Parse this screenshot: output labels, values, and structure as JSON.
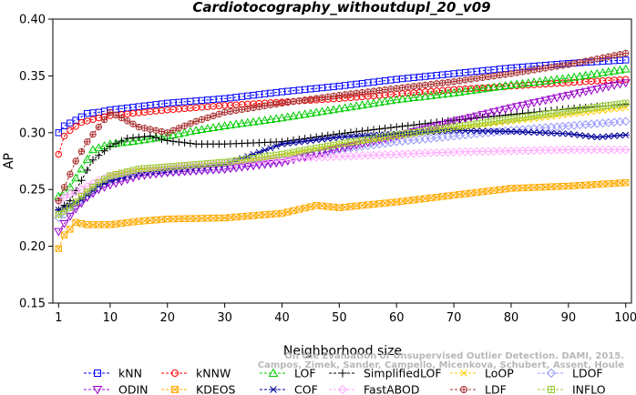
{
  "chart_data": {
    "type": "line",
    "title": "Cardiotocography_withoutdupl_20_v09",
    "xlabel": "Neighborhood size",
    "ylabel": "AP",
    "xlim": [
      0,
      101
    ],
    "ylim": [
      0.15,
      0.4
    ],
    "xticks": [
      1,
      10,
      20,
      30,
      40,
      50,
      60,
      70,
      80,
      90,
      100
    ],
    "yticks": [
      0.15,
      0.2,
      0.25,
      0.3,
      0.35,
      0.4
    ],
    "xtick_labels": [
      "1",
      "10",
      "20",
      "30",
      "40",
      "50",
      "60",
      "70",
      "80",
      "90",
      "100"
    ],
    "ytick_labels": [
      "0.15",
      "0.20",
      "0.25",
      "0.30",
      "0.35",
      "0.40"
    ],
    "grid": false,
    "legend_position": "bottom",
    "watermark": [
      "Campos, Zimek, Sander, Campello, Micenkova, Schubert, Assent, Houle",
      "On the Evaluation of Unsupervised Outlier Detection. DAMI, 2015."
    ],
    "series": [
      {
        "name": "kNN",
        "color": "#0000ff",
        "marker": "square",
        "points": [
          [
            1,
            0.3
          ],
          [
            2,
            0.306
          ],
          [
            4,
            0.311
          ],
          [
            6,
            0.317
          ],
          [
            8,
            0.318
          ],
          [
            10,
            0.32
          ],
          [
            15,
            0.323
          ],
          [
            20,
            0.326
          ],
          [
            30,
            0.33
          ],
          [
            40,
            0.336
          ],
          [
            50,
            0.341
          ],
          [
            60,
            0.347
          ],
          [
            70,
            0.352
          ],
          [
            80,
            0.357
          ],
          [
            90,
            0.361
          ],
          [
            100,
            0.364
          ]
        ]
      },
      {
        "name": "kNNW",
        "color": "#ff0000",
        "marker": "circle",
        "points": [
          [
            1,
            0.281
          ],
          [
            2,
            0.297
          ],
          [
            3,
            0.302
          ],
          [
            5,
            0.309
          ],
          [
            8,
            0.313
          ],
          [
            10,
            0.315
          ],
          [
            20,
            0.32
          ],
          [
            30,
            0.324
          ],
          [
            40,
            0.327
          ],
          [
            50,
            0.33
          ],
          [
            60,
            0.334
          ],
          [
            70,
            0.338
          ],
          [
            80,
            0.341
          ],
          [
            90,
            0.344
          ],
          [
            100,
            0.347
          ]
        ]
      },
      {
        "name": "LOF",
        "color": "#00cc00",
        "marker": "triangle-up",
        "points": [
          [
            1,
            0.244
          ],
          [
            3,
            0.252
          ],
          [
            5,
            0.268
          ],
          [
            7,
            0.285
          ],
          [
            10,
            0.29
          ],
          [
            15,
            0.293
          ],
          [
            20,
            0.297
          ],
          [
            25,
            0.302
          ],
          [
            30,
            0.306
          ],
          [
            40,
            0.313
          ],
          [
            50,
            0.321
          ],
          [
            60,
            0.329
          ],
          [
            70,
            0.335
          ],
          [
            80,
            0.342
          ],
          [
            90,
            0.348
          ],
          [
            100,
            0.356
          ]
        ]
      },
      {
        "name": "SimplifiedLOF",
        "color": "#000000",
        "marker": "plus",
        "points": [
          [
            1,
            0.232
          ],
          [
            3,
            0.24
          ],
          [
            5,
            0.258
          ],
          [
            7,
            0.276
          ],
          [
            10,
            0.288
          ],
          [
            13,
            0.295
          ],
          [
            17,
            0.297
          ],
          [
            20,
            0.293
          ],
          [
            25,
            0.29
          ],
          [
            30,
            0.29
          ],
          [
            40,
            0.292
          ],
          [
            50,
            0.299
          ],
          [
            60,
            0.305
          ],
          [
            70,
            0.311
          ],
          [
            80,
            0.316
          ],
          [
            90,
            0.321
          ],
          [
            100,
            0.325
          ]
        ]
      },
      {
        "name": "LoOP",
        "color": "#ffcc00",
        "marker": "x",
        "points": [
          [
            1,
            0.232
          ],
          [
            3,
            0.235
          ],
          [
            5,
            0.243
          ],
          [
            8,
            0.255
          ],
          [
            10,
            0.262
          ],
          [
            15,
            0.267
          ],
          [
            20,
            0.268
          ],
          [
            30,
            0.272
          ],
          [
            40,
            0.28
          ],
          [
            50,
            0.289
          ],
          [
            60,
            0.297
          ],
          [
            70,
            0.304
          ],
          [
            80,
            0.31
          ],
          [
            90,
            0.316
          ],
          [
            100,
            0.322
          ]
        ]
      },
      {
        "name": "LDOF",
        "color": "#9999ff",
        "marker": "diamond",
        "points": [
          [
            1,
            0.225
          ],
          [
            3,
            0.231
          ],
          [
            5,
            0.24
          ],
          [
            8,
            0.252
          ],
          [
            10,
            0.258
          ],
          [
            15,
            0.263
          ],
          [
            20,
            0.265
          ],
          [
            30,
            0.268
          ],
          [
            40,
            0.276
          ],
          [
            50,
            0.285
          ],
          [
            60,
            0.292
          ],
          [
            70,
            0.297
          ],
          [
            80,
            0.302
          ],
          [
            90,
            0.306
          ],
          [
            100,
            0.31
          ]
        ]
      },
      {
        "name": "ODIN",
        "color": "#9900cc",
        "marker": "triangle-down",
        "points": [
          [
            1,
            0.213
          ],
          [
            2,
            0.22
          ],
          [
            4,
            0.233
          ],
          [
            6,
            0.243
          ],
          [
            8,
            0.25
          ],
          [
            10,
            0.254
          ],
          [
            15,
            0.262
          ],
          [
            20,
            0.265
          ],
          [
            30,
            0.268
          ],
          [
            40,
            0.274
          ],
          [
            50,
            0.286
          ],
          [
            60,
            0.297
          ],
          [
            70,
            0.31
          ],
          [
            80,
            0.322
          ],
          [
            90,
            0.333
          ],
          [
            100,
            0.344
          ]
        ]
      },
      {
        "name": "KDEOS",
        "color": "#ffaa00",
        "marker": "square-x",
        "points": [
          [
            1,
            0.198
          ],
          [
            2,
            0.21
          ],
          [
            3,
            0.215
          ],
          [
            4,
            0.221
          ],
          [
            6,
            0.219
          ],
          [
            10,
            0.219
          ],
          [
            15,
            0.222
          ],
          [
            20,
            0.224
          ],
          [
            30,
            0.225
          ],
          [
            40,
            0.229
          ],
          [
            46,
            0.236
          ],
          [
            50,
            0.234
          ],
          [
            60,
            0.239
          ],
          [
            70,
            0.245
          ],
          [
            80,
            0.251
          ],
          [
            90,
            0.253
          ],
          [
            100,
            0.256
          ]
        ]
      },
      {
        "name": "COF",
        "color": "#000099",
        "marker": "asterisk",
        "points": [
          [
            1,
            0.232
          ],
          [
            3,
            0.236
          ],
          [
            5,
            0.241
          ],
          [
            8,
            0.253
          ],
          [
            10,
            0.258
          ],
          [
            15,
            0.264
          ],
          [
            20,
            0.267
          ],
          [
            30,
            0.272
          ],
          [
            40,
            0.29
          ],
          [
            50,
            0.296
          ],
          [
            60,
            0.299
          ],
          [
            70,
            0.302
          ],
          [
            80,
            0.301
          ],
          [
            90,
            0.299
          ],
          [
            95,
            0.296
          ],
          [
            100,
            0.298
          ]
        ]
      },
      {
        "name": "FastABOD",
        "color": "#ffaaff",
        "marker": "diamond-cross",
        "points": [
          [
            1,
            0.24
          ],
          [
            3,
            0.246
          ],
          [
            5,
            0.25
          ],
          [
            8,
            0.258
          ],
          [
            10,
            0.262
          ],
          [
            15,
            0.266
          ],
          [
            20,
            0.269
          ],
          [
            30,
            0.273
          ],
          [
            40,
            0.277
          ],
          [
            50,
            0.279
          ],
          [
            60,
            0.281
          ],
          [
            70,
            0.283
          ],
          [
            80,
            0.284
          ],
          [
            90,
            0.285
          ],
          [
            100,
            0.285
          ]
        ]
      },
      {
        "name": "LDF",
        "color": "#aa3333",
        "marker": "circle-dot",
        "points": [
          [
            1,
            0.24
          ],
          [
            2,
            0.252
          ],
          [
            4,
            0.275
          ],
          [
            6,
            0.292
          ],
          [
            8,
            0.305
          ],
          [
            10,
            0.318
          ],
          [
            12,
            0.313
          ],
          [
            15,
            0.305
          ],
          [
            20,
            0.3
          ],
          [
            25,
            0.31
          ],
          [
            30,
            0.318
          ],
          [
            40,
            0.326
          ],
          [
            50,
            0.333
          ],
          [
            60,
            0.339
          ],
          [
            70,
            0.345
          ],
          [
            80,
            0.352
          ],
          [
            90,
            0.36
          ],
          [
            100,
            0.37
          ]
        ]
      },
      {
        "name": "INFLO",
        "color": "#99cc33",
        "marker": "square-hash",
        "points": [
          [
            1,
            0.228
          ],
          [
            3,
            0.234
          ],
          [
            5,
            0.244
          ],
          [
            8,
            0.256
          ],
          [
            10,
            0.262
          ],
          [
            15,
            0.268
          ],
          [
            20,
            0.27
          ],
          [
            30,
            0.274
          ],
          [
            40,
            0.281
          ],
          [
            50,
            0.29
          ],
          [
            60,
            0.298
          ],
          [
            70,
            0.305
          ],
          [
            80,
            0.312
          ],
          [
            90,
            0.319
          ],
          [
            100,
            0.326
          ]
        ]
      }
    ]
  }
}
